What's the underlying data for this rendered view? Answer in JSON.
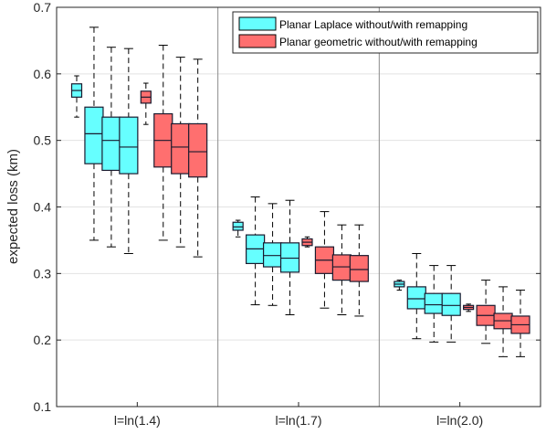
{
  "chart_data": {
    "type": "boxplot",
    "title": "",
    "xlabel": "",
    "ylabel": "expected loss (km)",
    "ylim": [
      0.1,
      0.7
    ],
    "yticks": [
      0.1,
      0.2,
      0.3,
      0.4,
      0.5,
      0.6,
      0.7
    ],
    "ytick_labels": [
      "0.1",
      "0.2",
      "0.3",
      "0.4",
      "0.5",
      "0.6",
      "0.7"
    ],
    "grid": true,
    "legend_position": "top-right",
    "groups": [
      "l=ln(1.4)",
      "l=ln(1.7)",
      "l=ln(2.0)"
    ],
    "series": [
      {
        "name": "Planar Laplace without/with remapping",
        "color": "#66ffff",
        "boxes": [
          [
            {
              "min": 0.535,
              "q1": 0.565,
              "median": 0.575,
              "q3": 0.585,
              "max": 0.597
            },
            {
              "min": 0.35,
              "q1": 0.465,
              "median": 0.51,
              "q3": 0.55,
              "max": 0.67
            },
            {
              "min": 0.34,
              "q1": 0.455,
              "median": 0.5,
              "q3": 0.535,
              "max": 0.64
            },
            {
              "min": 0.33,
              "q1": 0.45,
              "median": 0.49,
              "q3": 0.535,
              "max": 0.638
            }
          ],
          [
            {
              "min": 0.355,
              "q1": 0.365,
              "median": 0.37,
              "q3": 0.377,
              "max": 0.38
            },
            {
              "min": 0.253,
              "q1": 0.315,
              "median": 0.337,
              "q3": 0.358,
              "max": 0.415
            },
            {
              "min": 0.252,
              "q1": 0.31,
              "median": 0.327,
              "q3": 0.346,
              "max": 0.405
            },
            {
              "min": 0.238,
              "q1": 0.302,
              "median": 0.323,
              "q3": 0.346,
              "max": 0.41
            }
          ],
          [
            {
              "min": 0.275,
              "q1": 0.28,
              "median": 0.284,
              "q3": 0.288,
              "max": 0.29
            },
            {
              "min": 0.202,
              "q1": 0.247,
              "median": 0.262,
              "q3": 0.28,
              "max": 0.33
            },
            {
              "min": 0.197,
              "q1": 0.24,
              "median": 0.253,
              "q3": 0.27,
              "max": 0.312
            },
            {
              "min": 0.197,
              "q1": 0.237,
              "median": 0.252,
              "q3": 0.27,
              "max": 0.312
            }
          ]
        ]
      },
      {
        "name": "Planar geometric without/with remapping",
        "color": "#ff6f6f",
        "boxes": [
          [
            {
              "min": 0.524,
              "q1": 0.556,
              "median": 0.565,
              "q3": 0.574,
              "max": 0.586
            },
            {
              "min": 0.35,
              "q1": 0.46,
              "median": 0.5,
              "q3": 0.54,
              "max": 0.643
            },
            {
              "min": 0.34,
              "q1": 0.45,
              "median": 0.49,
              "q3": 0.525,
              "max": 0.625
            },
            {
              "min": 0.325,
              "q1": 0.445,
              "median": 0.483,
              "q3": 0.525,
              "max": 0.622
            }
          ],
          [
            {
              "min": 0.34,
              "q1": 0.342,
              "median": 0.347,
              "q3": 0.352,
              "max": 0.355
            },
            {
              "min": 0.248,
              "q1": 0.3,
              "median": 0.32,
              "q3": 0.34,
              "max": 0.393
            },
            {
              "min": 0.238,
              "q1": 0.29,
              "median": 0.31,
              "q3": 0.328,
              "max": 0.373
            },
            {
              "min": 0.236,
              "q1": 0.288,
              "median": 0.306,
              "q3": 0.327,
              "max": 0.373
            }
          ],
          [
            {
              "min": 0.243,
              "q1": 0.246,
              "median": 0.249,
              "q3": 0.252,
              "max": 0.254
            },
            {
              "min": 0.195,
              "q1": 0.222,
              "median": 0.237,
              "q3": 0.252,
              "max": 0.29
            },
            {
              "min": 0.175,
              "q1": 0.217,
              "median": 0.229,
              "q3": 0.24,
              "max": 0.28
            },
            {
              "min": 0.175,
              "q1": 0.21,
              "median": 0.223,
              "q3": 0.236,
              "max": 0.275
            }
          ]
        ]
      }
    ]
  }
}
